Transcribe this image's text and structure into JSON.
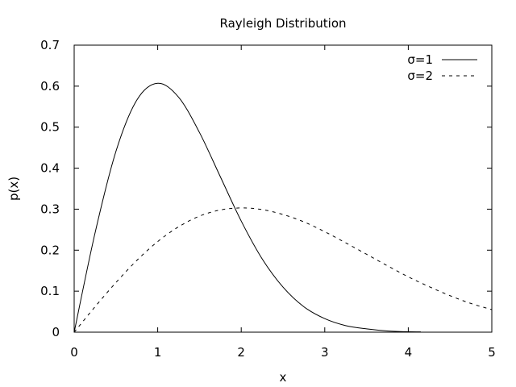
{
  "chart_data": {
    "type": "line",
    "title": "Rayleigh Distribution",
    "xlabel": "x",
    "ylabel": "p(x)",
    "xlim": [
      0,
      5
    ],
    "ylim": [
      0,
      0.7
    ],
    "x_ticks": [
      "0",
      "1",
      "2",
      "3",
      "4",
      "5"
    ],
    "y_ticks": [
      "0",
      "0.1",
      "0.2",
      "0.3",
      "0.4",
      "0.5",
      "0.6",
      "0.7"
    ],
    "grid": false,
    "legend_position": "top-right",
    "series": [
      {
        "name": "σ=1",
        "style": "solid",
        "color": "#000000",
        "x": [
          0,
          0.25,
          0.5,
          0.75,
          1.0,
          1.25,
          1.5,
          1.75,
          2.0,
          2.25,
          2.5,
          2.75,
          3.0,
          3.25,
          3.5,
          3.75,
          4.0,
          4.15
        ],
        "y": [
          0,
          0.242,
          0.441,
          0.566,
          0.607,
          0.573,
          0.487,
          0.379,
          0.271,
          0.179,
          0.11,
          0.062,
          0.033,
          0.016,
          0.008,
          0.003,
          0.001,
          0.0008
        ]
      },
      {
        "name": "σ=2",
        "style": "dashed",
        "color": "#000000",
        "x": [
          0,
          0.25,
          0.5,
          0.75,
          1.0,
          1.25,
          1.5,
          1.75,
          2.0,
          2.25,
          2.5,
          2.75,
          3.0,
          3.25,
          3.5,
          3.75,
          4.0,
          4.25,
          4.5,
          4.75,
          5.0
        ],
        "y": [
          0,
          0.062,
          0.121,
          0.175,
          0.221,
          0.257,
          0.283,
          0.298,
          0.303,
          0.299,
          0.287,
          0.269,
          0.245,
          0.218,
          0.19,
          0.162,
          0.135,
          0.111,
          0.089,
          0.07,
          0.055
        ]
      }
    ]
  }
}
